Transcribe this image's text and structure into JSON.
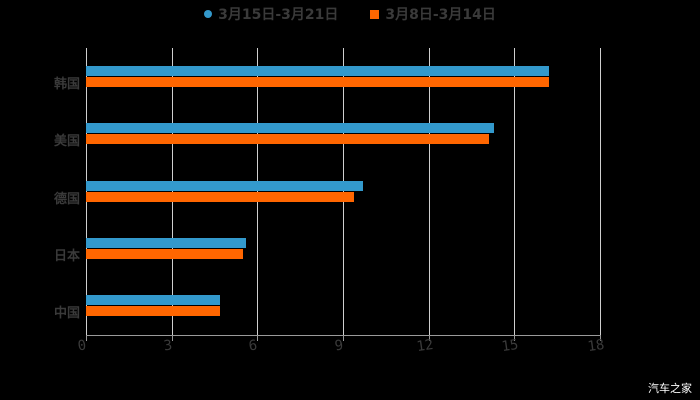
{
  "colors": {
    "series1": "#3399cc",
    "series2": "#ff6600",
    "background": "#000000",
    "grid": "#cfcfcf",
    "text": "#3a3a3a"
  },
  "legend": [
    {
      "label": "3月15日-3月21日",
      "marker": "circle"
    },
    {
      "label": "3月8日-3月14日",
      "marker": "square"
    }
  ],
  "watermark": "汽车之家",
  "chart_data": {
    "type": "bar",
    "orientation": "horizontal",
    "title": "",
    "xlabel": "",
    "ylabel": "",
    "categories": [
      "韩国",
      "美国",
      "德国",
      "日本",
      "中国"
    ],
    "series": [
      {
        "name": "3月15日-3月21日",
        "values": [
          16.2,
          14.3,
          9.7,
          5.6,
          4.7
        ]
      },
      {
        "name": "3月8日-3月14日",
        "values": [
          16.2,
          14.1,
          9.4,
          5.5,
          4.7
        ]
      }
    ],
    "xlim": [
      0,
      18
    ],
    "xticks": [
      "0",
      "3",
      "6",
      "9",
      "12",
      "15",
      "18"
    ],
    "grid": true,
    "legend_position": "top"
  }
}
